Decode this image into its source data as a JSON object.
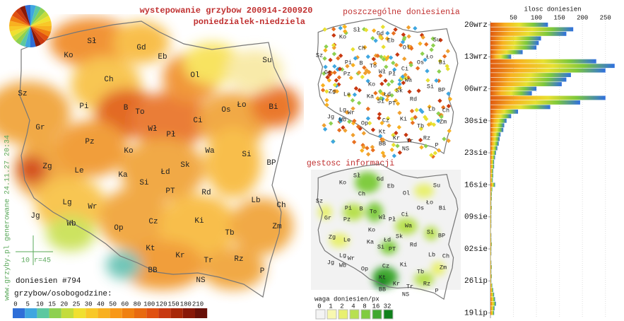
{
  "title": "wystepowanie grzybow 200914-200920",
  "subtitle": "poniedzialek-niedziela",
  "side_note": "www.grzyby.pl generowane 24.11.27 20:34",
  "main_map": {
    "labels": [
      "Sł",
      "Gd",
      "Eb",
      "Su",
      "Ko",
      "Ol",
      "Ch",
      "Sz",
      "Pi",
      "B",
      "To",
      "Os",
      "Ło",
      "Bi",
      "Gr",
      "Wł",
      "Pł",
      "Ci",
      "Pz",
      "Ko",
      "Wa",
      "Si",
      "Zg",
      "Le",
      "Ka",
      "Łd",
      "Sk",
      "BP",
      "Lg",
      "Si",
      "Rd",
      "Wr",
      "Lb",
      "Jg",
      "Wb",
      "PT",
      "Ch",
      "Op",
      "Cz",
      "Ki",
      "Zm",
      "Tb",
      "Kt",
      "Kr",
      "Rz",
      "Tr",
      "BB",
      "NS",
      "P"
    ],
    "scale_label": "10 r=45",
    "report_count": "doniesien #794",
    "legend": {
      "title": "grzybow/osobogodzine:",
      "ticks": [
        0,
        5,
        10,
        15,
        20,
        25,
        30,
        40,
        50,
        60,
        80,
        100,
        120,
        150,
        180,
        210
      ],
      "colors": [
        "#2f6fd8",
        "#3fa6e0",
        "#5cc8a0",
        "#8ed050",
        "#c4dc3c",
        "#f0e030",
        "#f8c828",
        "#f8b020",
        "#f89818",
        "#f08010",
        "#e86a10",
        "#e05010",
        "#c83810",
        "#a82808",
        "#881808",
        "#681008"
      ]
    }
  },
  "reports_map": {
    "title": "poszczególne doniesienia"
  },
  "density_map": {
    "title": "gestosc informacji",
    "legend": {
      "title": "waga doniesien/px",
      "ticks": [
        0,
        1,
        2,
        4,
        8,
        16,
        32
      ],
      "colors": [
        "#f4f4f4",
        "#f8f8b0",
        "#e8f070",
        "#b8e050",
        "#80cc40",
        "#40a830",
        "#10801c"
      ]
    }
  },
  "chart_data": {
    "type": "bar",
    "orientation": "horizontal",
    "title": "ilosc doniesien",
    "categories": [
      "20wrz",
      null,
      null,
      null,
      null,
      null,
      null,
      "13wrz",
      null,
      null,
      null,
      null,
      null,
      null,
      "06wrz",
      null,
      null,
      null,
      null,
      null,
      null,
      "30sie",
      null,
      null,
      null,
      null,
      null,
      null,
      "23sie",
      null,
      null,
      null,
      null,
      null,
      null,
      "16sie",
      null,
      null,
      null,
      null,
      null,
      null,
      "09sie",
      null,
      null,
      null,
      null,
      null,
      null,
      "02sie",
      null,
      null,
      null,
      null,
      null,
      null,
      "26lip",
      null,
      null,
      null,
      null,
      null,
      null,
      "19lip"
    ],
    "values": [
      125,
      180,
      165,
      110,
      105,
      100,
      70,
      45,
      230,
      270,
      250,
      175,
      165,
      155,
      100,
      90,
      250,
      195,
      130,
      60,
      45,
      35,
      30,
      28,
      22,
      20,
      18,
      15,
      12,
      10,
      8,
      8,
      6,
      6,
      5,
      10,
      4,
      3,
      3,
      2,
      3,
      2,
      2,
      2,
      2,
      1,
      2,
      2,
      3,
      2,
      2,
      1,
      2,
      3,
      2,
      3,
      2,
      4,
      6,
      8,
      10,
      12,
      9,
      8
    ],
    "xlim": [
      0,
      275
    ],
    "xticks": [
      50,
      100,
      150,
      200,
      250
    ],
    "grid": true,
    "colors": [
      "#e05a10",
      "#f8b020",
      "#e8e030",
      "#7cc83c",
      "#2f6fe0"
    ]
  }
}
